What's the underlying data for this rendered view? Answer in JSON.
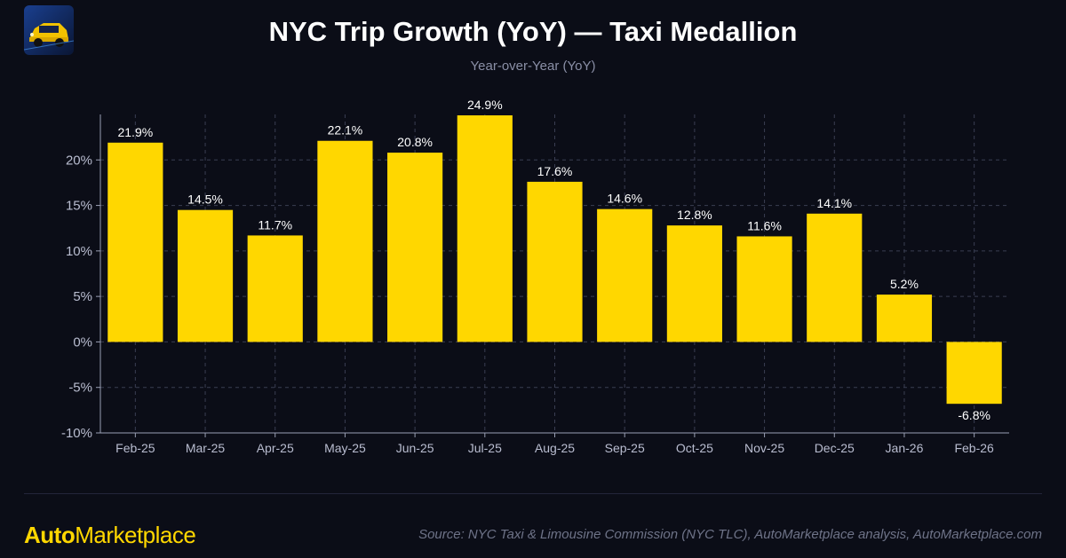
{
  "header": {
    "title": "NYC Trip Growth (YoY) — Taxi Medallion",
    "subtitle": "Year-over-Year (YoY)"
  },
  "footer": {
    "brand_bold": "Auto",
    "brand_rest": "Marketplace",
    "source": "Source: NYC Taxi & Limousine Commission (NYC TLC), AutoMarketplace analysis, AutoMarketplace.com"
  },
  "colors": {
    "background": "#0b0d17",
    "bar": "#ffd700",
    "axis": "#9aa0b4",
    "grid": "#3a3e52",
    "label": "#ffffff"
  },
  "chart_data": {
    "type": "bar",
    "title": "NYC Trip Growth (YoY) — Taxi Medallion",
    "subtitle": "Year-over-Year (YoY)",
    "xlabel": "",
    "ylabel": "",
    "categories": [
      "Feb-25",
      "Mar-25",
      "Apr-25",
      "May-25",
      "Jun-25",
      "Jul-25",
      "Aug-25",
      "Sep-25",
      "Oct-25",
      "Nov-25",
      "Dec-25",
      "Jan-26",
      "Feb-26"
    ],
    "values": [
      21.9,
      14.5,
      11.7,
      22.1,
      20.8,
      24.9,
      17.6,
      14.6,
      12.8,
      11.6,
      14.1,
      5.2,
      -6.8
    ],
    "value_labels": [
      "21.9%",
      "14.5%",
      "11.7%",
      "22.1%",
      "20.8%",
      "24.9%",
      "17.6%",
      "14.6%",
      "12.8%",
      "11.6%",
      "14.1%",
      "5.2%",
      "-6.8%"
    ],
    "yticks": [
      -10,
      -5,
      0,
      5,
      10,
      15,
      20
    ],
    "ytick_labels": [
      "-10%",
      "-5%",
      "0%",
      "5%",
      "10%",
      "15%",
      "20%"
    ],
    "ylim": [
      -10,
      25
    ],
    "grid": true
  }
}
